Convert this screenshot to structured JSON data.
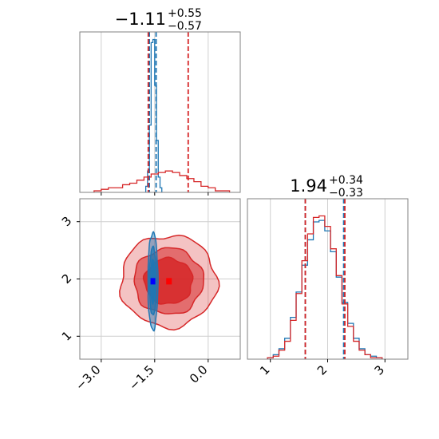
{
  "colors": {
    "series_blue": "#1f77b4",
    "series_red": "#d62728",
    "grid": "#cfcfcf"
  },
  "chart_data": [
    {
      "type": "histogram",
      "panel": "top-left",
      "title": {
        "main": "−1.11",
        "sup": "+0.55",
        "sub": "−0.57"
      },
      "xlim": [
        -3.6,
        0.9
      ],
      "grid": true,
      "series": [
        {
          "color": "blue",
          "median": -1.55,
          "quantiles": [
            -1.65,
            -1.46
          ],
          "bins": [
            -1.75,
            -1.7,
            -1.65,
            -1.6,
            -1.55,
            -1.5,
            -1.45,
            -1.4,
            -1.35,
            -1.3
          ],
          "counts": [
            4,
            14,
            44,
            98,
            100,
            70,
            34,
            10,
            3
          ]
        },
        {
          "color": "red",
          "median": -1.11,
          "quantiles": [
            -1.68,
            -0.56
          ],
          "bins": [
            -3.2,
            -3.0,
            -2.8,
            -2.6,
            -2.4,
            -2.2,
            -2.0,
            -1.8,
            -1.6,
            -1.4,
            -1.2,
            -1.0,
            -0.8,
            -0.6,
            -0.4,
            -0.2,
            0.0,
            0.2,
            0.4,
            0.6
          ],
          "counts": [
            1,
            2,
            3,
            3,
            5,
            6,
            8,
            10,
            12,
            13,
            14,
            13,
            11,
            9,
            7,
            4,
            3,
            1,
            1
          ]
        }
      ]
    },
    {
      "type": "contour",
      "panel": "bottom-left",
      "xlim": [
        -3.6,
        0.9
      ],
      "ylim": [
        0.6,
        3.4
      ],
      "xticks": [
        "−3.0",
        "−1.5",
        "0.0"
      ],
      "yticks": [
        "1",
        "2",
        "3"
      ],
      "grid": true,
      "series": [
        {
          "color": "red",
          "center": [
            -1.11,
            1.96
          ],
          "spread": [
            1.35,
            0.8
          ]
        },
        {
          "color": "blue",
          "center": [
            -1.55,
            1.96
          ],
          "spread": [
            0.14,
            0.85
          ]
        }
      ]
    },
    {
      "type": "histogram",
      "panel": "bottom-right",
      "title": {
        "main": "1.94",
        "sup": "+0.34",
        "sub": "−0.33"
      },
      "xlim": [
        0.6,
        3.4
      ],
      "xticks": [
        "1",
        "2",
        "3"
      ],
      "grid": true,
      "series": [
        {
          "color": "blue",
          "quantiles": [
            1.61,
            2.28
          ],
          "bins": [
            0.95,
            1.05,
            1.15,
            1.25,
            1.35,
            1.45,
            1.55,
            1.65,
            1.75,
            1.85,
            1.95,
            2.05,
            2.15,
            2.25,
            2.35,
            2.45,
            2.55,
            2.65,
            2.75,
            2.85,
            2.95
          ],
          "counts": [
            1,
            3,
            7,
            14,
            28,
            45,
            63,
            80,
            92,
            93,
            86,
            72,
            55,
            38,
            24,
            14,
            7,
            3,
            2,
            1
          ]
        },
        {
          "color": "red",
          "quantiles": [
            1.61,
            2.3
          ],
          "bins": [
            0.95,
            1.05,
            1.15,
            1.25,
            1.35,
            1.45,
            1.55,
            1.65,
            1.75,
            1.85,
            1.95,
            2.05,
            2.15,
            2.25,
            2.35,
            2.45,
            2.55,
            2.65,
            2.75,
            2.85,
            2.95
          ],
          "counts": [
            1,
            2,
            6,
            12,
            26,
            44,
            66,
            84,
            95,
            96,
            89,
            74,
            56,
            37,
            22,
            12,
            6,
            3,
            1,
            1
          ]
        }
      ]
    }
  ]
}
